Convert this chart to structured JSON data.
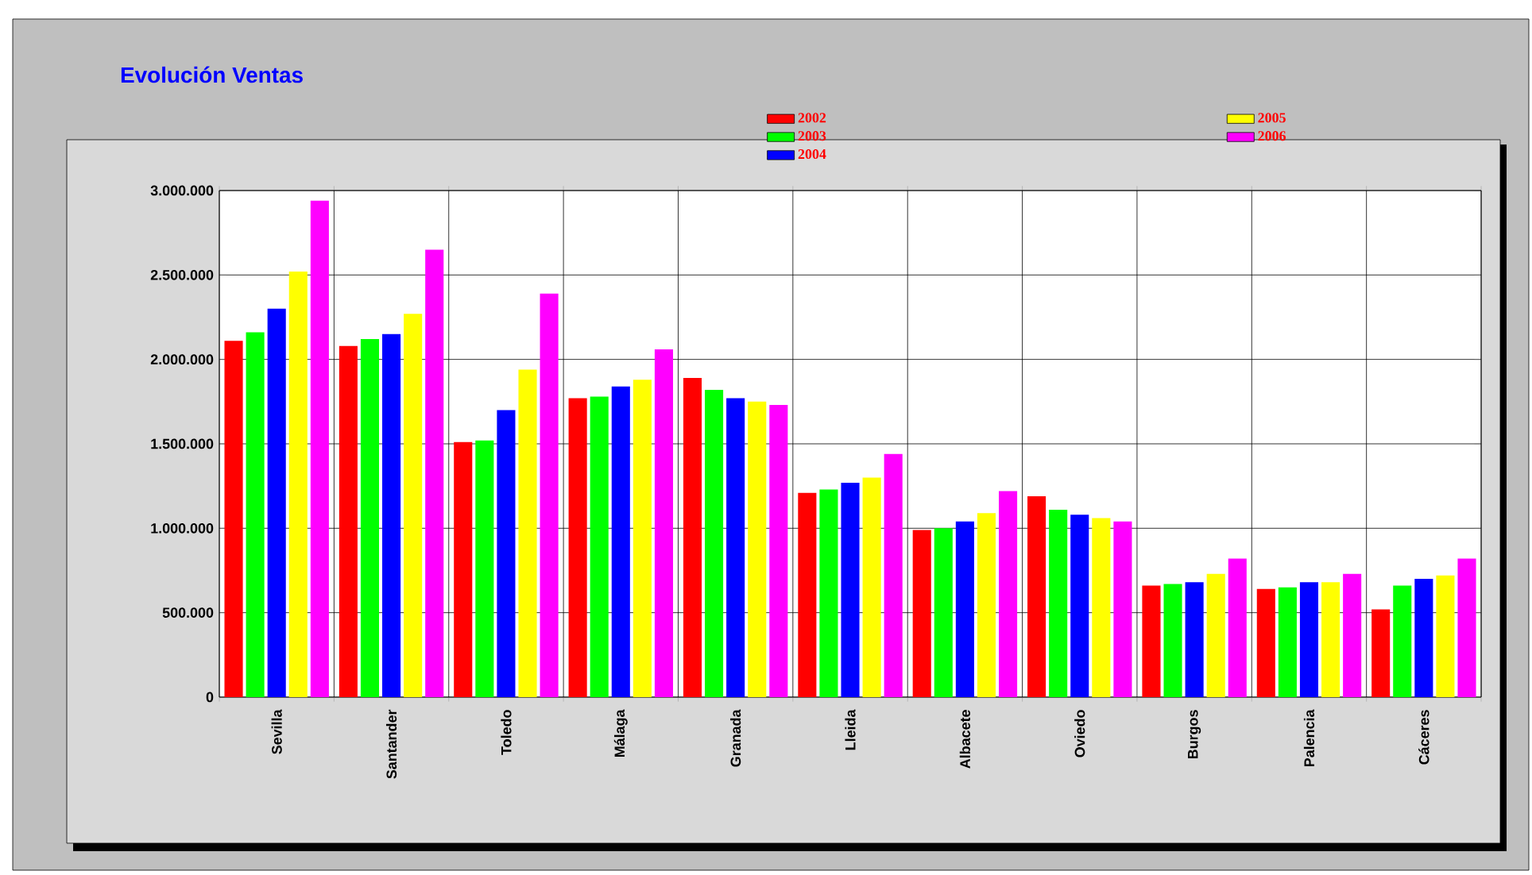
{
  "chart_data": {
    "type": "bar",
    "title": "Evolución Ventas",
    "categories": [
      "Sevilla",
      "Santander",
      "Toledo",
      "Málaga",
      "Granada",
      "Lleida",
      "Albacete",
      "Oviedo",
      "Burgos",
      "Palencia",
      "Cáceres"
    ],
    "series": [
      {
        "name": "2002",
        "color": "#ff0000",
        "values": [
          2110000,
          2080000,
          1510000,
          1770000,
          1890000,
          1210000,
          990000,
          1190000,
          660000,
          640000,
          520000
        ]
      },
      {
        "name": "2003",
        "color": "#00ff00",
        "values": [
          2160000,
          2120000,
          1520000,
          1780000,
          1820000,
          1230000,
          1000000,
          1110000,
          670000,
          650000,
          660000
        ]
      },
      {
        "name": "2004",
        "color": "#0000ff",
        "values": [
          2300000,
          2150000,
          1700000,
          1840000,
          1770000,
          1270000,
          1040000,
          1080000,
          680000,
          680000,
          700000
        ]
      },
      {
        "name": "2005",
        "color": "#ffff00",
        "values": [
          2520000,
          2270000,
          1940000,
          1880000,
          1750000,
          1300000,
          1090000,
          1060000,
          730000,
          680000,
          720000
        ]
      },
      {
        "name": "2006",
        "color": "#ff00ff",
        "values": [
          2940000,
          2650000,
          2390000,
          2060000,
          1730000,
          1440000,
          1220000,
          1040000,
          820000,
          730000,
          820000
        ]
      }
    ],
    "ylim": [
      0,
      3000000
    ],
    "yticks": [
      {
        "value": 0,
        "label": "0"
      },
      {
        "value": 500000,
        "label": "500.000"
      },
      {
        "value": 1000000,
        "label": "1.000.000"
      },
      {
        "value": 1500000,
        "label": "1.500.000"
      },
      {
        "value": 2000000,
        "label": "2.000.000"
      },
      {
        "value": 2500000,
        "label": "2.500.000"
      },
      {
        "value": 3000000,
        "label": "3.000.000"
      }
    ],
    "grid": true,
    "legend": "top"
  }
}
